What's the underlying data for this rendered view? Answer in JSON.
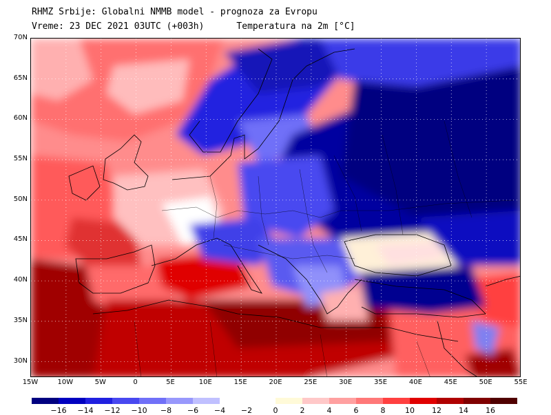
{
  "header": {
    "line1": "RHMZ Srbije: Globalni NMMB model - prognoza za Evropu",
    "line2": "Vreme: 23 DEC 2021 03UTC (+003h)      Temperatura na 2m [°C]"
  },
  "map": {
    "lat_labels": [
      "70N",
      "65N",
      "60N",
      "55N",
      "50N",
      "45N",
      "40N",
      "35N",
      "30N"
    ],
    "lon_labels": [
      "15W",
      "10W",
      "5W",
      "0",
      "5E",
      "10E",
      "15E",
      "20E",
      "25E",
      "30E",
      "35E",
      "40E",
      "45E",
      "50E",
      "55E"
    ],
    "extent": {
      "lon_min": -15,
      "lon_max": 55,
      "lat_min": 28,
      "lat_max": 70
    }
  },
  "colorbar": {
    "colors_negative": [
      "#000080",
      "#0000c0",
      "#2020e0",
      "#4848f0",
      "#7070f8",
      "#9898fc",
      "#c0c0ff"
    ],
    "colors_positive": [
      "#fffad8",
      "#ffc8c8",
      "#ffa0a0",
      "#ff7878",
      "#ff4040",
      "#e00000",
      "#b00000",
      "#800000",
      "#500000"
    ],
    "ticks_negative": [
      "−16",
      "−14",
      "−12",
      "−10",
      "−8",
      "−6",
      "−4",
      "−2"
    ],
    "ticks_positive": [
      "0",
      "2",
      "4",
      "6",
      "8",
      "10",
      "12",
      "14",
      "16"
    ]
  }
}
